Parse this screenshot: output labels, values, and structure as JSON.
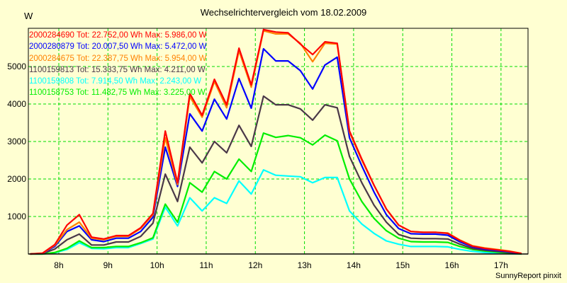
{
  "chart_data": {
    "type": "line",
    "title": "Wechselrichtervergleich vom 18.02.2009",
    "ylabel": "W",
    "xlabel": "",
    "footer": "SunnyReport pinxit",
    "ylim": [
      0,
      6020
    ],
    "xlim_hours": [
      7.38,
      17.55
    ],
    "grid": true,
    "legend_placement": "top-left",
    "yticks": [
      1000,
      2000,
      3000,
      4000,
      5000
    ],
    "ytick_labels": [
      "1000",
      "2000",
      "3000",
      "4000",
      "5000"
    ],
    "xticks_hours": [
      8,
      9,
      10,
      11,
      12,
      13,
      14,
      15,
      16,
      17
    ],
    "xtick_labels": [
      "8h",
      "9h",
      "10h",
      "11h",
      "12h",
      "13h",
      "14h",
      "15h",
      "16h",
      "17h"
    ],
    "x": [
      "07:25",
      "07:40",
      "07:55",
      "08:10",
      "08:25",
      "08:40",
      "08:55",
      "09:10",
      "09:25",
      "09:40",
      "09:55",
      "10:10",
      "10:25",
      "10:40",
      "10:55",
      "11:10",
      "11:25",
      "11:40",
      "11:55",
      "12:10",
      "12:25",
      "12:40",
      "12:55",
      "13:10",
      "13:25",
      "13:40",
      "13:55",
      "14:10",
      "14:25",
      "14:40",
      "14:55",
      "15:10",
      "15:25",
      "15:40",
      "15:55",
      "16:10",
      "16:25",
      "16:40",
      "16:55",
      "17:10",
      "17:25"
    ],
    "series": [
      {
        "name": "2000284690",
        "legend": "2000284690 Tot: 22.752,00 Wh Max: 5.986,00 W",
        "color": "#FF0000",
        "values": [
          0,
          20,
          250,
          770,
          1050,
          450,
          400,
          490,
          490,
          700,
          1080,
          3280,
          1900,
          4280,
          3700,
          4660,
          3980,
          5490,
          4510,
          5986,
          5920,
          5900,
          5600,
          5320,
          5660,
          5620,
          3280,
          2530,
          1830,
          1200,
          770,
          600,
          580,
          580,
          550,
          360,
          210,
          150,
          110,
          70,
          15
        ]
      },
      {
        "name": "2000280879",
        "legend": "2000280879 Tot: 20.007,50 Wh Max: 5.472,00 W",
        "color": "#0000FF",
        "values": [
          0,
          15,
          200,
          600,
          750,
          380,
          330,
          420,
          420,
          600,
          980,
          2850,
          1800,
          3740,
          3280,
          4130,
          3600,
          4680,
          3890,
          5472,
          5150,
          5150,
          4890,
          4400,
          5040,
          5250,
          3100,
          2350,
          1650,
          1050,
          680,
          540,
          530,
          530,
          500,
          320,
          190,
          130,
          95,
          60,
          10
        ]
      },
      {
        "name": "2000284675",
        "legend": "2000284675 Tot: 22.387,75 Wh Max: 5.954,00 W",
        "color": "#FF8000",
        "values": [
          0,
          15,
          230,
          650,
          850,
          420,
          380,
          470,
          470,
          680,
          1050,
          3100,
          1850,
          4200,
          3650,
          4600,
          3900,
          5420,
          4450,
          5954,
          5870,
          5870,
          5620,
          5130,
          5620,
          5600,
          3250,
          2500,
          1830,
          1200,
          770,
          600,
          580,
          580,
          560,
          370,
          220,
          160,
          120,
          80,
          15
        ]
      },
      {
        "name": "1100159813",
        "legend": "1100159813 Tot: 15.333,75 Wh Max: 4.211,00 W",
        "color": "#4A3848",
        "values": [
          0,
          10,
          130,
          380,
          530,
          240,
          240,
          320,
          320,
          470,
          820,
          2130,
          1400,
          2850,
          2430,
          3000,
          2700,
          3430,
          2870,
          4211,
          3980,
          3980,
          3870,
          3570,
          3980,
          3900,
          2600,
          1900,
          1300,
          850,
          520,
          420,
          410,
          410,
          400,
          260,
          150,
          100,
          70,
          40,
          5
        ]
      },
      {
        "name": "1100159808",
        "legend": "1100159808 Tot: 7.914,50 Wh Max: 2.243,00 W",
        "color": "#00FFFF",
        "values": [
          0,
          0,
          30,
          120,
          300,
          150,
          140,
          170,
          170,
          280,
          400,
          1250,
          750,
          1500,
          1150,
          1500,
          1350,
          1950,
          1600,
          2243,
          2100,
          2080,
          2060,
          1900,
          2040,
          2040,
          1150,
          800,
          550,
          350,
          260,
          200,
          200,
          200,
          190,
          120,
          70,
          40,
          20,
          5,
          0
        ]
      },
      {
        "name": "1100158753",
        "legend": "1100158753 Tot: 11.482,75 Wh Max: 3.225,00 W",
        "color": "#00EE00",
        "values": [
          0,
          0,
          40,
          150,
          350,
          170,
          170,
          200,
          200,
          300,
          430,
          1330,
          850,
          1900,
          1650,
          2200,
          2000,
          2530,
          2200,
          3225,
          3110,
          3160,
          3100,
          2910,
          3170,
          3020,
          2000,
          1400,
          950,
          620,
          420,
          330,
          320,
          320,
          310,
          200,
          120,
          80,
          50,
          25,
          0
        ]
      }
    ]
  }
}
